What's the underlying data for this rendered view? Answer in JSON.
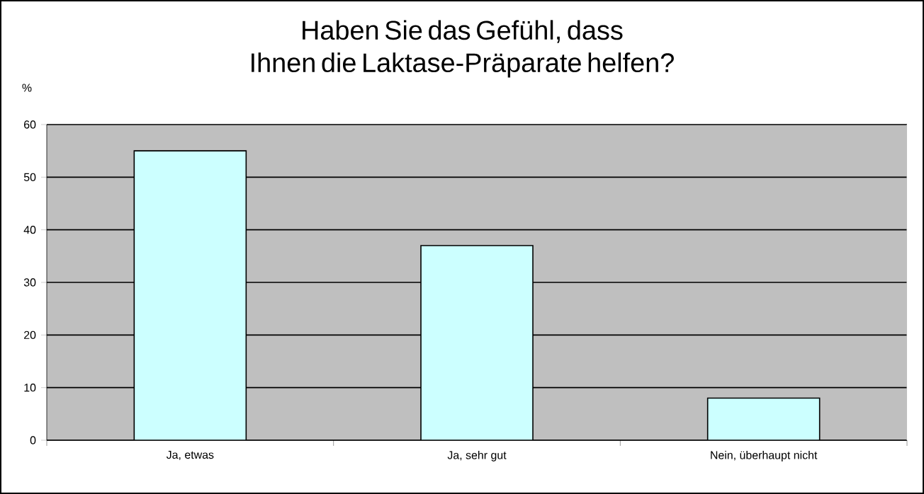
{
  "chart_data": {
    "type": "bar",
    "title": "Haben Sie das Gefühl, dass Ihnen die Laktase-Präparate helfen?",
    "ylabel": "%",
    "categories": [
      "Ja, etwas",
      "Ja, sehr gut",
      "Nein, überhaupt nicht"
    ],
    "values": [
      55,
      37,
      8
    ],
    "color": "#ccffff",
    "ylim": [
      0,
      60
    ],
    "yticks": [
      0,
      10,
      20,
      30,
      40,
      50,
      60
    ],
    "grid": "y"
  }
}
